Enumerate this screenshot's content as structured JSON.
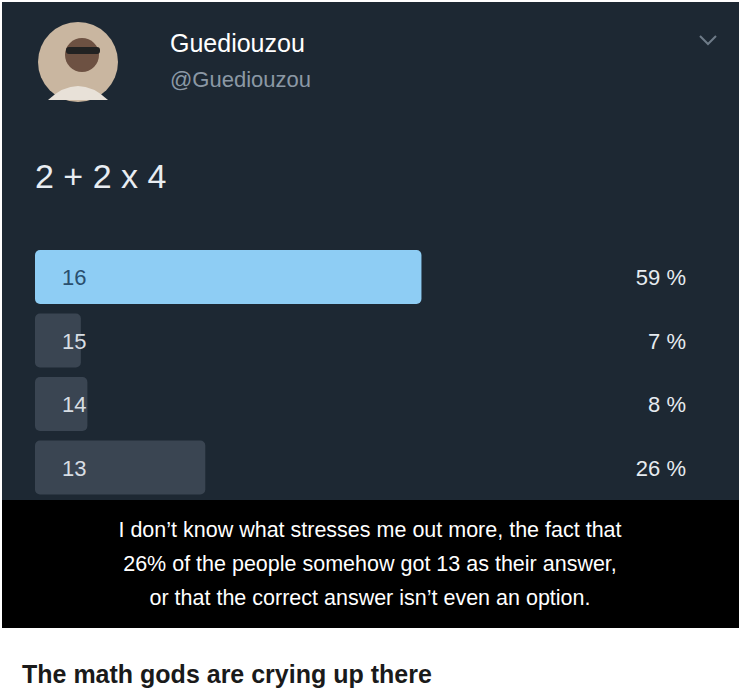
{
  "header": {
    "name": "Guediouzou",
    "handle": "@Guediouzou"
  },
  "chart_data": {
    "type": "bar",
    "orientation": "horizontal",
    "title": "2 + 2 x 4",
    "categories": [
      "16",
      "15",
      "14",
      "13"
    ],
    "values": [
      59,
      7,
      8,
      26
    ],
    "value_labels": [
      "59 %",
      "7 %",
      "8 %",
      "26 %"
    ],
    "colors": [
      "#8ecdf4",
      "#3a4552",
      "#3a4552",
      "#3a4552"
    ],
    "xlim": [
      0,
      100
    ],
    "data_labels": true,
    "tick_labels": false,
    "grid": false
  },
  "caption": {
    "lines": [
      "I don’t know what stresses me out more, the fact that",
      "26% of the people somehow got 13 as their answer,",
      "or that the correct answer isn’t even an option."
    ]
  },
  "footer": {
    "text": "The math gods are crying up there"
  }
}
